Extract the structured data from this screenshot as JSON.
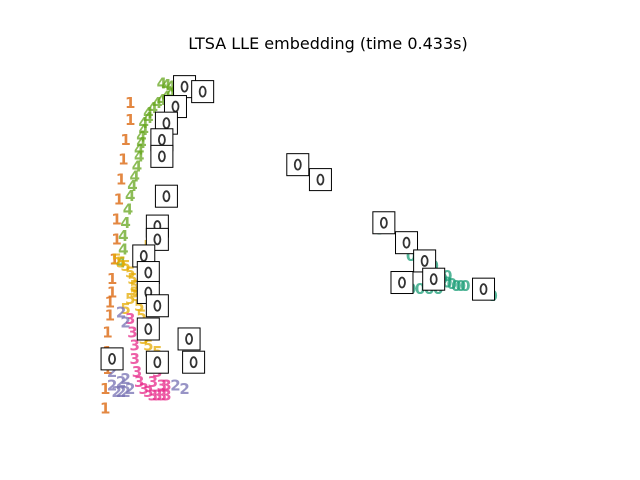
{
  "chart_data": {
    "type": "scatter",
    "title": "LTSA LLE embedding (time 0.433s)",
    "xlabel": "",
    "ylabel": "",
    "xlim": [
      0,
      1
    ],
    "ylim": [
      0,
      1
    ],
    "axes_visible": false,
    "grid": false,
    "legend": "none",
    "marker": "digit glyphs",
    "colors": {
      "0": "#1b9e77",
      "1": "#d95f02",
      "2": "#7570b3",
      "3": "#e7298a",
      "4": "#66a61e",
      "5": "#e6ab02"
    },
    "series": [
      {
        "label": "4",
        "points": [
          [
            0.13,
            0.99
          ],
          [
            0.14,
            0.985
          ],
          [
            0.15,
            0.98
          ],
          [
            0.16,
            0.975
          ],
          [
            0.17,
            0.985
          ],
          [
            0.18,
            0.98
          ],
          [
            0.19,
            0.975
          ],
          [
            0.2,
            0.97
          ],
          [
            0.17,
            0.97
          ],
          [
            0.15,
            0.96
          ],
          [
            0.14,
            0.95
          ],
          [
            0.13,
            0.94
          ],
          [
            0.12,
            0.93
          ],
          [
            0.11,
            0.915
          ],
          [
            0.1,
            0.9
          ],
          [
            0.1,
            0.885
          ],
          [
            0.09,
            0.87
          ],
          [
            0.09,
            0.85
          ],
          [
            0.085,
            0.83
          ],
          [
            0.085,
            0.81
          ],
          [
            0.08,
            0.79
          ],
          [
            0.08,
            0.77
          ],
          [
            0.075,
            0.74
          ],
          [
            0.07,
            0.71
          ],
          [
            0.065,
            0.68
          ],
          [
            0.06,
            0.65
          ],
          [
            0.055,
            0.61
          ],
          [
            0.05,
            0.57
          ],
          [
            0.045,
            0.53
          ],
          [
            0.045,
            0.49
          ],
          [
            0.04,
            0.45
          ]
        ]
      },
      {
        "label": "1",
        "points": [
          [
            0.06,
            0.93
          ],
          [
            0.06,
            0.88
          ],
          [
            0.05,
            0.82
          ],
          [
            0.045,
            0.76
          ],
          [
            0.04,
            0.7
          ],
          [
            0.035,
            0.64
          ],
          [
            0.03,
            0.58
          ],
          [
            0.03,
            0.52
          ],
          [
            0.025,
            0.46
          ],
          [
            0.02,
            0.4
          ],
          [
            0.02,
            0.36
          ],
          [
            0.015,
            0.33
          ],
          [
            0.015,
            0.29
          ],
          [
            0.01,
            0.24
          ],
          [
            0.01,
            0.18
          ],
          [
            0.01,
            0.13
          ],
          [
            0.005,
            0.07
          ],
          [
            0.005,
            0.01
          ]
        ]
      },
      {
        "label": "5",
        "points": [
          [
            0.03,
            0.46
          ],
          [
            0.04,
            0.45
          ],
          [
            0.05,
            0.44
          ],
          [
            0.06,
            0.42
          ],
          [
            0.065,
            0.4
          ],
          [
            0.07,
            0.38
          ],
          [
            0.075,
            0.35
          ],
          [
            0.08,
            0.32
          ],
          [
            0.085,
            0.29
          ],
          [
            0.085,
            0.25
          ],
          [
            0.09,
            0.22
          ],
          [
            0.1,
            0.2
          ],
          [
            0.12,
            0.18
          ],
          [
            0.06,
            0.34
          ],
          [
            0.05,
            0.31
          ],
          [
            0.1,
            0.5
          ],
          [
            0.07,
            0.36
          ]
        ]
      },
      {
        "label": "3",
        "points": [
          [
            0.06,
            0.28
          ],
          [
            0.065,
            0.24
          ],
          [
            0.07,
            0.2
          ],
          [
            0.07,
            0.16
          ],
          [
            0.075,
            0.12
          ],
          [
            0.08,
            0.09
          ],
          [
            0.09,
            0.07
          ],
          [
            0.1,
            0.06
          ],
          [
            0.11,
            0.05
          ],
          [
            0.12,
            0.05
          ],
          [
            0.13,
            0.05
          ],
          [
            0.14,
            0.05
          ],
          [
            0.11,
            0.09
          ],
          [
            0.12,
            0.12
          ],
          [
            0.13,
            0.08
          ],
          [
            0.14,
            0.08
          ]
        ]
      },
      {
        "label": "2",
        "points": [
          [
            0.02,
            0.08
          ],
          [
            0.03,
            0.06
          ],
          [
            0.04,
            0.06
          ],
          [
            0.05,
            0.06
          ],
          [
            0.06,
            0.07
          ],
          [
            0.04,
            0.09
          ],
          [
            0.05,
            0.1
          ],
          [
            0.02,
            0.12
          ],
          [
            0.03,
            0.14
          ],
          [
            0.04,
            0.3
          ],
          [
            0.05,
            0.27
          ],
          [
            0.16,
            0.08
          ],
          [
            0.18,
            0.07
          ]
        ]
      },
      {
        "label": "0",
        "points": [
          [
            0.43,
            0.74
          ],
          [
            0.48,
            0.7
          ],
          [
            0.61,
            0.55
          ],
          [
            0.66,
            0.5
          ],
          [
            0.68,
            0.47
          ],
          [
            0.71,
            0.45
          ],
          [
            0.72,
            0.43
          ],
          [
            0.73,
            0.42
          ],
          [
            0.74,
            0.41
          ],
          [
            0.75,
            0.4
          ],
          [
            0.76,
            0.39
          ],
          [
            0.77,
            0.385
          ],
          [
            0.78,
            0.38
          ],
          [
            0.79,
            0.38
          ],
          [
            0.8,
            0.38
          ],
          [
            0.74,
            0.37
          ],
          [
            0.72,
            0.37
          ],
          [
            0.7,
            0.37
          ],
          [
            0.68,
            0.37
          ],
          [
            0.7,
            0.46
          ],
          [
            0.73,
            0.44
          ],
          [
            0.76,
            0.41
          ],
          [
            0.86,
            0.35
          ]
        ]
      }
    ],
    "thumbnails": [
      [
        0.18,
        0.98
      ],
      [
        0.22,
        0.965
      ],
      [
        0.16,
        0.92
      ],
      [
        0.14,
        0.87
      ],
      [
        0.13,
        0.82
      ],
      [
        0.13,
        0.77
      ],
      [
        0.14,
        0.65
      ],
      [
        0.12,
        0.56
      ],
      [
        0.12,
        0.52
      ],
      [
        0.09,
        0.47
      ],
      [
        0.1,
        0.42
      ],
      [
        0.1,
        0.36
      ],
      [
        0.12,
        0.32
      ],
      [
        0.1,
        0.25
      ],
      [
        0.19,
        0.22
      ],
      [
        0.02,
        0.16
      ],
      [
        0.12,
        0.15
      ],
      [
        0.2,
        0.15
      ],
      [
        0.43,
        0.745
      ],
      [
        0.48,
        0.7
      ],
      [
        0.62,
        0.57
      ],
      [
        0.67,
        0.51
      ],
      [
        0.71,
        0.455
      ],
      [
        0.73,
        0.4
      ],
      [
        0.66,
        0.39
      ],
      [
        0.84,
        0.37
      ]
    ]
  }
}
